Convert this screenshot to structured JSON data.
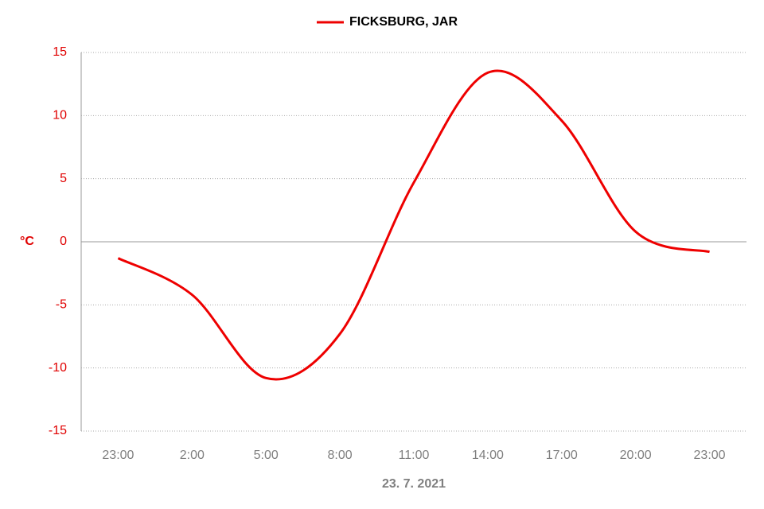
{
  "chart_data": {
    "type": "line",
    "legend_position": "top",
    "categories": [
      "23:00",
      "2:00",
      "5:00",
      "8:00",
      "11:00",
      "14:00",
      "17:00",
      "20:00",
      "23:00"
    ],
    "series": [
      {
        "name": "FICKSBURG, JAR",
        "color": "#ee0000",
        "values": [
          -1.3,
          -4.2,
          -10.8,
          -7.3,
          4.7,
          13.4,
          9.6,
          0.8,
          -0.8
        ]
      }
    ],
    "ylabel": "°C",
    "xlabel": "23. 7. 2021",
    "ylim": [
      -15,
      15
    ],
    "yticks": [
      -15,
      -10,
      -5,
      0,
      5,
      10,
      15
    ],
    "grid": true,
    "smooth": true
  }
}
